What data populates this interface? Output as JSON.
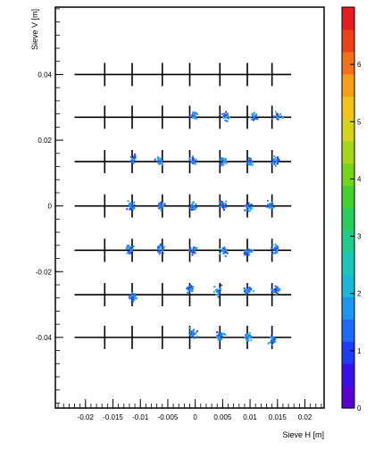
{
  "chart_data": {
    "type": "scatter",
    "xlabel": "Sieve H [m]",
    "ylabel": "Sieve V [m]",
    "xlim": [
      -0.0255,
      0.0235
    ],
    "ylim": [
      -0.0615,
      0.0605
    ],
    "x_ticks": [
      -0.02,
      -0.015,
      -0.01,
      -0.005,
      0,
      0.005,
      0.01,
      0.015,
      0.02
    ],
    "x_tick_labels": [
      "-0.02",
      "-0.015",
      "-0.01",
      "-0.005",
      "0",
      "0.005",
      "0.01",
      "0.015",
      "0.02"
    ],
    "y_ticks": [
      -0.04,
      -0.02,
      0,
      0.02,
      0.04
    ],
    "y_tick_labels": [
      "-0.04",
      "-0.02",
      "0",
      "0.02",
      "0.04"
    ],
    "sieve_rows_y": [
      0.04,
      0.027,
      0.0135,
      0,
      -0.0135,
      -0.027,
      -0.04
    ],
    "sieve_cols_x": [
      -0.0165,
      -0.0115,
      -0.006,
      -0.001,
      0.0045,
      0.0095,
      0.014
    ],
    "sieve_line_x_range": [
      -0.022,
      0.0175
    ],
    "clusters": [
      {
        "x": -0.0005,
        "y": 0.0275
      },
      {
        "x": 0.0055,
        "y": 0.0275
      },
      {
        "x": 0.0105,
        "y": 0.0275
      },
      {
        "x": 0.015,
        "y": 0.0275
      },
      {
        "x": -0.0115,
        "y": 0.0145
      },
      {
        "x": -0.0065,
        "y": 0.014
      },
      {
        "x": -0.0005,
        "y": 0.014
      },
      {
        "x": 0.005,
        "y": 0.014
      },
      {
        "x": 0.01,
        "y": 0.014
      },
      {
        "x": 0.0145,
        "y": 0.014
      },
      {
        "x": -0.012,
        "y": 0.0005
      },
      {
        "x": -0.0065,
        "y": 0.0005
      },
      {
        "x": -0.0005,
        "y": 0.0
      },
      {
        "x": 0.005,
        "y": 0.0005
      },
      {
        "x": 0.0095,
        "y": 0.0
      },
      {
        "x": 0.0135,
        "y": 0.0005
      },
      {
        "x": -0.012,
        "y": -0.013
      },
      {
        "x": -0.0065,
        "y": -0.013
      },
      {
        "x": -0.0005,
        "y": -0.0135
      },
      {
        "x": 0.005,
        "y": -0.0135
      },
      {
        "x": 0.0095,
        "y": -0.0135
      },
      {
        "x": 0.0145,
        "y": -0.013
      },
      {
        "x": -0.0115,
        "y": -0.0275
      },
      {
        "x": -0.001,
        "y": -0.025
      },
      {
        "x": 0.004,
        "y": -0.0255
      },
      {
        "x": 0.0095,
        "y": -0.0255
      },
      {
        "x": 0.0145,
        "y": -0.0255
      },
      {
        "x": -0.0005,
        "y": -0.0385
      },
      {
        "x": 0.0045,
        "y": -0.0395
      },
      {
        "x": 0.0095,
        "y": -0.04
      },
      {
        "x": 0.014,
        "y": -0.0405
      }
    ],
    "colorbar": {
      "range": [
        0,
        7
      ],
      "ticks": [
        0,
        1,
        2,
        3,
        4,
        5,
        6
      ],
      "colors": [
        "#5a00d0",
        "#3a10e8",
        "#1f3cf2",
        "#1e6af4",
        "#1d96f0",
        "#19b8d8",
        "#17c8b8",
        "#20cc8c",
        "#2ccc5c",
        "#46cf2e",
        "#74d41c",
        "#a5d61a",
        "#d4d41a",
        "#f2c21a",
        "#f59e18",
        "#f27018",
        "#ec4218",
        "#e41e1e"
      ]
    }
  }
}
